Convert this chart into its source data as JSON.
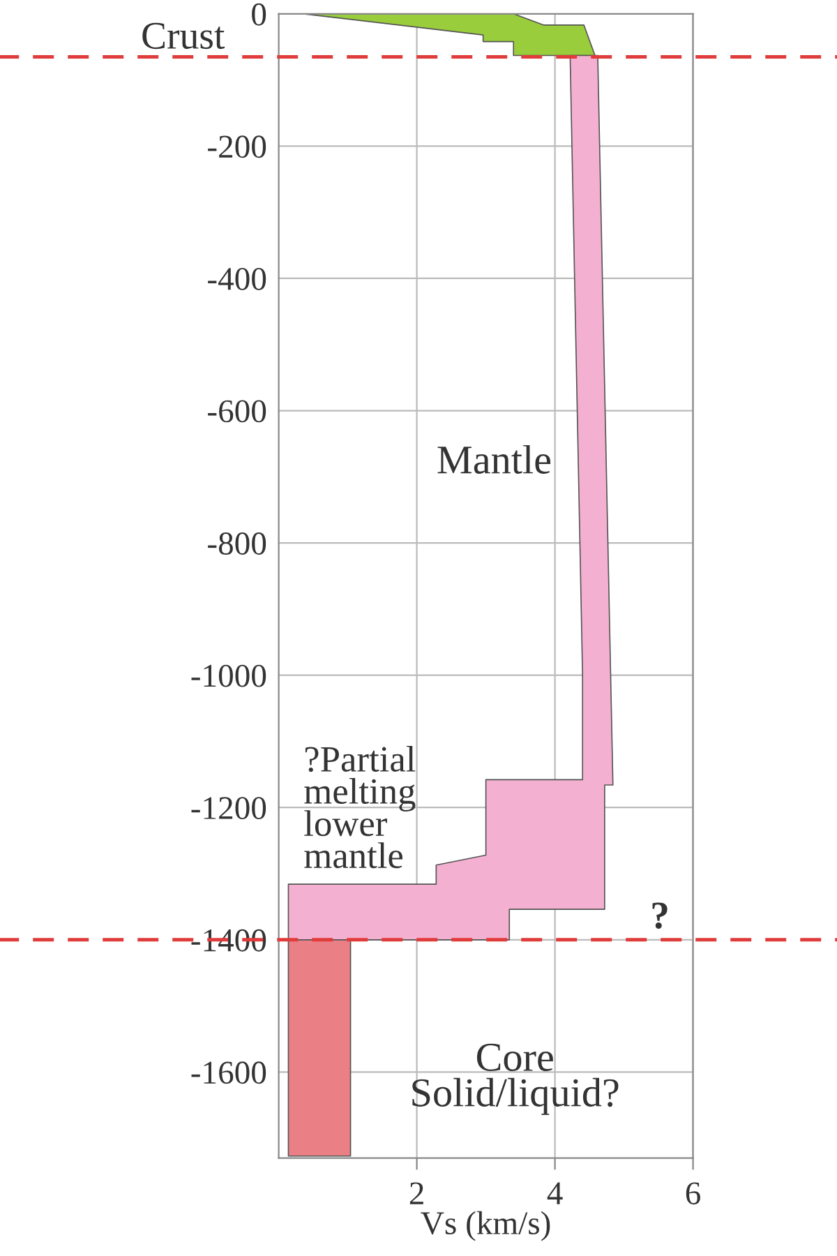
{
  "chart_data": {
    "type": "area",
    "xlabel": "Vs (km/s)",
    "xlim": [
      0,
      6
    ],
    "xticks": [
      2,
      4,
      6
    ],
    "ylim": [
      -1730,
      0
    ],
    "yticks": [
      0,
      -200,
      -400,
      -600,
      -800,
      -1000,
      -1200,
      -1400,
      -1600
    ],
    "grid": true,
    "line_style": "solid",
    "series": [
      {
        "color": "#9acd3c",
        "x": [
          0.36,
          3.4,
          3.84,
          4.42,
          4.58,
          3.4,
          3.4,
          2.96,
          2.96
        ],
        "values": [
          0,
          0,
          -17,
          -17,
          -63,
          -63,
          -42,
          -42,
          -32
        ]
      },
      {
        "color": "#f4b0d0",
        "x": [
          4.22,
          4.62,
          4.84,
          4.72,
          4.72,
          3.34,
          3.34,
          0.14,
          0.14,
          2.28,
          2.28,
          3.0,
          3.0,
          4.4,
          4.4
        ],
        "values": [
          -63,
          -63,
          -1166,
          -1166,
          -1354,
          -1354,
          -1400,
          -1400,
          -1316,
          -1316,
          -1287,
          -1272,
          -1158,
          -1158,
          -1000
        ]
      },
      {
        "color": "#eb7f86",
        "x": [
          0.14,
          1.04,
          1.04,
          0.14
        ],
        "values": [
          -1400,
          -1400,
          -1727,
          -1727
        ]
      }
    ],
    "ref_lines": [
      {
        "axis": "y",
        "value": -65,
        "label": "Crust",
        "color": "#e03c3c",
        "line_style": "dashed"
      },
      {
        "axis": "y",
        "value": -1400,
        "label": "?",
        "color": "#e03c3c",
        "line_style": "dashed"
      }
    ],
    "annotations": [
      "Mantle",
      "?Partial\nmelting\nlower\nmantle",
      "Core\nSolid/liquid?"
    ]
  }
}
